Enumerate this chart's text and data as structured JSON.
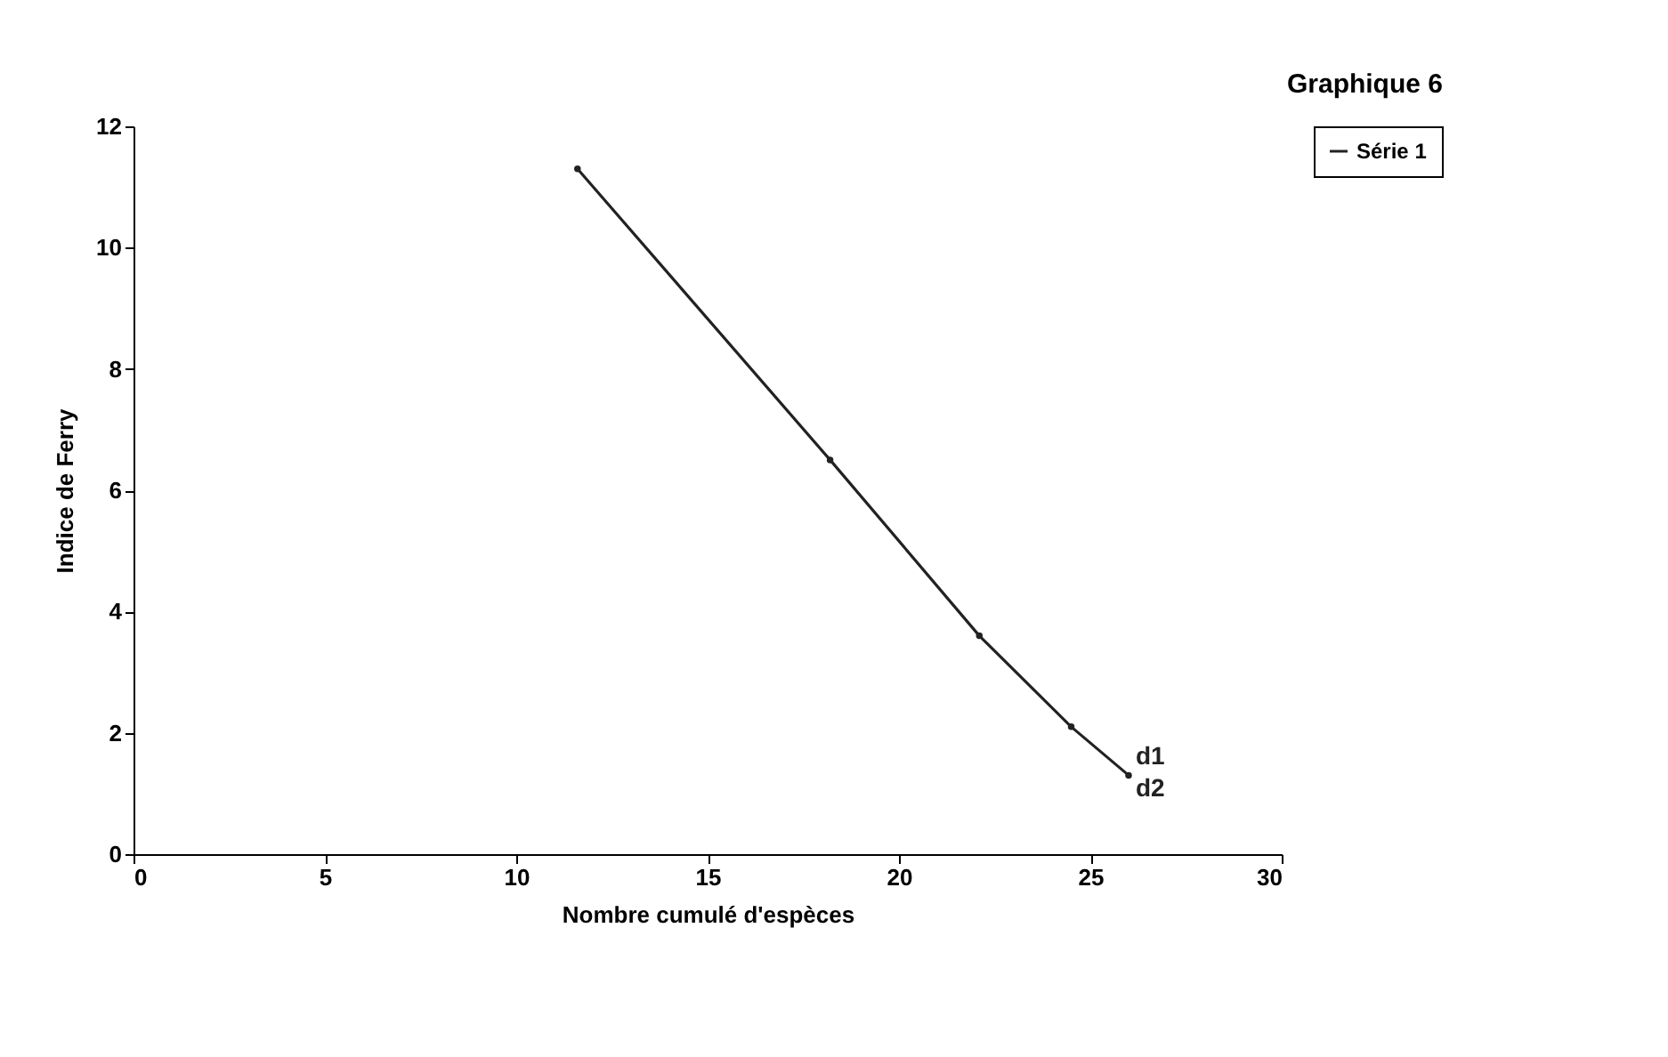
{
  "chart_data": {
    "type": "line",
    "title": "Graphique 6",
    "xlabel": "Nombre cumulé d'espèces",
    "ylabel": "Indice de Ferry",
    "x": [
      11.6,
      18.2,
      22.1,
      24.5,
      26.0
    ],
    "series": [
      {
        "name": "Série 1",
        "color": "#222222",
        "values": [
          11.3,
          6.5,
          3.6,
          2.1,
          1.3
        ]
      }
    ],
    "xlim": [
      0,
      30
    ],
    "xticks": [
      0,
      5,
      10,
      15,
      20,
      25,
      30
    ],
    "ylim": [
      0,
      12
    ],
    "yticks": [
      0,
      2,
      4,
      6,
      8,
      10,
      12
    ],
    "annotations": [
      {
        "text": "d1",
        "x": 26.0,
        "y": 1.3
      },
      {
        "text": "d2",
        "x": 26.0,
        "y": 1.3
      }
    ],
    "grid": false,
    "legend": "right",
    "marker": "circle",
    "line_style": "solid"
  }
}
